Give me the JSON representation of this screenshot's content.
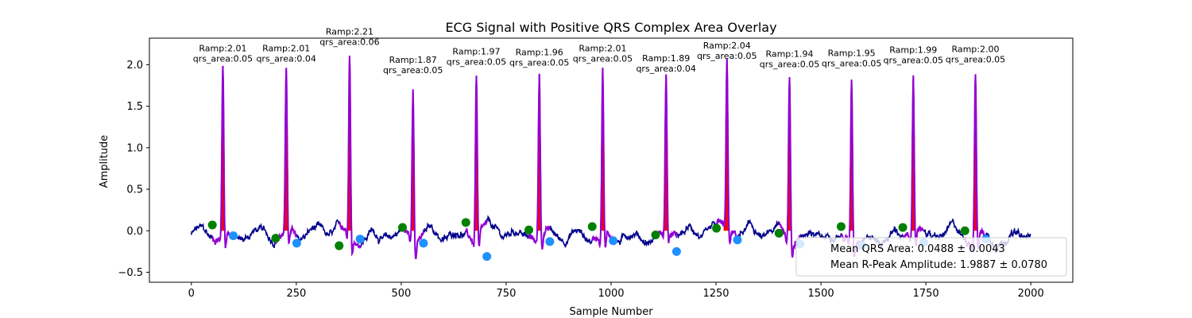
{
  "chart_data": {
    "type": "line",
    "title": "ECG Signal with Positive QRS Complex Area Overlay",
    "xlabel": "Sample Number",
    "ylabel": "Amplitude",
    "xlim": [
      -100,
      2100
    ],
    "ylim": [
      -0.62,
      2.32
    ],
    "xticks": [
      0,
      250,
      500,
      750,
      1000,
      1250,
      1500,
      1750,
      2000
    ],
    "xtick_labels": [
      "0",
      "250",
      "500",
      "750",
      "1000",
      "1250",
      "1500",
      "1750",
      "2000"
    ],
    "yticks": [
      -0.5,
      0.0,
      0.5,
      1.0,
      1.5,
      2.0
    ],
    "ytick_labels": [
      "−0.5",
      "0.0",
      "0.5",
      "1.0",
      "1.5",
      "2.0"
    ],
    "grid": false,
    "colors": {
      "signal": "#00008b",
      "qrs_segment": "#9400d3",
      "area_fill": "#ff0000",
      "onset_marker": "#008000",
      "offset_marker": "#1e90ff"
    },
    "beats": [
      {
        "r_x": 75,
        "r_amp": 2.01,
        "onset_x": 50,
        "onset_y": 0.07,
        "offset_x": 100,
        "offset_y": -0.06,
        "ramp_label": "Ramp:2.01",
        "area_label": "qrs_area:0.05"
      },
      {
        "r_x": 226,
        "r_amp": 2.01,
        "onset_x": 201,
        "onset_y": -0.09,
        "offset_x": 251,
        "offset_y": -0.15,
        "ramp_label": "Ramp:2.01",
        "area_label": "qrs_area:0.04"
      },
      {
        "r_x": 377,
        "r_amp": 2.21,
        "onset_x": 352,
        "onset_y": -0.18,
        "offset_x": 402,
        "offset_y": -0.1,
        "ramp_label": "Ramp:2.21",
        "area_label": "qrs_area:0.06"
      },
      {
        "r_x": 528,
        "r_amp": 1.87,
        "onset_x": 503,
        "onset_y": 0.04,
        "offset_x": 553,
        "offset_y": -0.15,
        "ramp_label": "Ramp:1.87",
        "area_label": "qrs_area:0.05"
      },
      {
        "r_x": 679,
        "r_amp": 1.97,
        "onset_x": 654,
        "onset_y": 0.1,
        "offset_x": 704,
        "offset_y": -0.31,
        "ramp_label": "Ramp:1.97",
        "area_label": "qrs_area:0.05"
      },
      {
        "r_x": 829,
        "r_amp": 1.96,
        "onset_x": 804,
        "onset_y": 0.01,
        "offset_x": 854,
        "offset_y": -0.13,
        "ramp_label": "Ramp:1.96",
        "area_label": "qrs_area:0.05"
      },
      {
        "r_x": 980,
        "r_amp": 2.01,
        "onset_x": 955,
        "onset_y": 0.05,
        "offset_x": 1005,
        "offset_y": -0.12,
        "ramp_label": "Ramp:2.01",
        "area_label": "qrs_area:0.05"
      },
      {
        "r_x": 1131,
        "r_amp": 1.89,
        "onset_x": 1106,
        "onset_y": -0.05,
        "offset_x": 1156,
        "offset_y": -0.25,
        "ramp_label": "Ramp:1.89",
        "area_label": "qrs_area:0.04"
      },
      {
        "r_x": 1276,
        "r_amp": 2.04,
        "onset_x": 1251,
        "onset_y": 0.03,
        "offset_x": 1301,
        "offset_y": -0.11,
        "ramp_label": "Ramp:2.04",
        "area_label": "qrs_area:0.05"
      },
      {
        "r_x": 1425,
        "r_amp": 1.94,
        "onset_x": 1400,
        "onset_y": -0.03,
        "offset_x": 1450,
        "offset_y": -0.16,
        "ramp_label": "Ramp:1.94",
        "area_label": "qrs_area:0.05"
      },
      {
        "r_x": 1573,
        "r_amp": 1.95,
        "onset_x": 1548,
        "onset_y": 0.05,
        "offset_x": 1598,
        "offset_y": -0.18,
        "ramp_label": "Ramp:1.95",
        "area_label": "qrs_area:0.05"
      },
      {
        "r_x": 1720,
        "r_amp": 1.99,
        "onset_x": 1695,
        "onset_y": 0.04,
        "offset_x": 1745,
        "offset_y": -0.14,
        "ramp_label": "Ramp:1.99",
        "area_label": "qrs_area:0.05"
      },
      {
        "r_x": 1868,
        "r_amp": 2.0,
        "onset_x": 1843,
        "onset_y": 0.0,
        "offset_x": 1893,
        "offset_y": -0.1,
        "ramp_label": "Ramp:2.00",
        "area_label": "qrs_area:0.05"
      }
    ],
    "legend": {
      "placement": "lower-right",
      "entries": [
        "Mean QRS Area: 0.0488 ± 0.0043",
        "Mean R-Peak Amplitude: 1.9887 ± 0.0780"
      ]
    }
  }
}
